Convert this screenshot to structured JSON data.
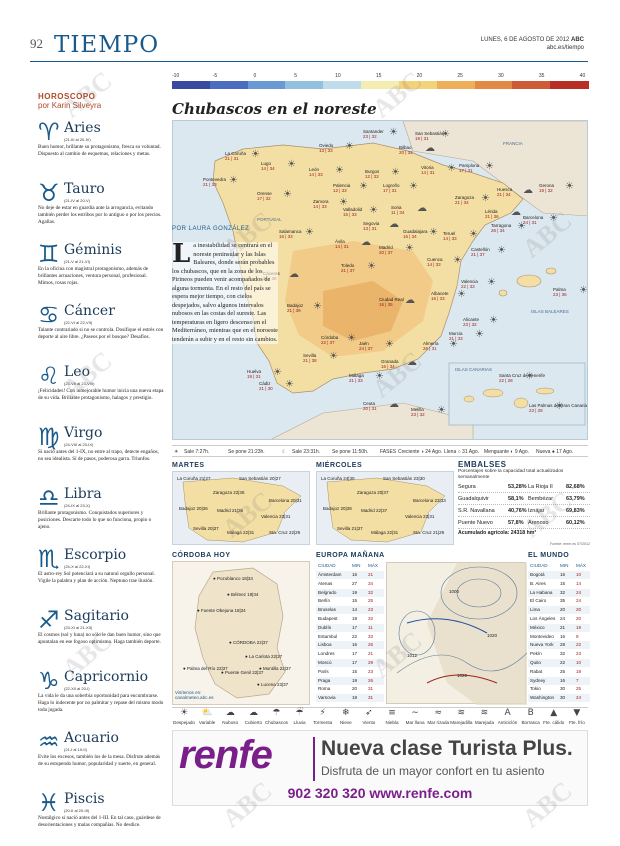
{
  "header": {
    "page_number": "92",
    "section": "TIEMPO",
    "date": "LUNES, 6 DE AGOSTO DE 2012",
    "paper": "ABC",
    "web": "abc.es/tiempo"
  },
  "watermark": "ABC",
  "horoscope": {
    "title": "HOROSCOPO",
    "byline": "por Karin Silveyra",
    "signs": [
      {
        "symbol": "♈",
        "name": "Aries",
        "dates": "(21-III al 20-IV)",
        "text": "Buen humor, brillante su protagonismo, fresca su voluntad. Dispuesto al cambio de esquemas, relaciones y metas."
      },
      {
        "symbol": "♉",
        "name": "Tauro",
        "dates": "(21-IV al 20-V)",
        "text": "No deje de estar en guardia ante la arrogancia, evitando también perder los estribos por lo antiguo o por los precios. Agallas."
      },
      {
        "symbol": "♊",
        "name": "Géminis",
        "dates": "(21-V al 21-VI)",
        "text": "En la oficina con magistral protagonismo, además de brillantes actuaciones, ventura personal, profesional. Mimos, rosas rojas."
      },
      {
        "symbol": "♋",
        "name": "Cáncer",
        "dates": "(22-VI al 22-VII)",
        "text": "Talante contrariado si no se controla. Dosifique el estrés con deporte al aire libre. ¿Paseos por el bosque? Desafíos."
      },
      {
        "symbol": "♌",
        "name": "Leo",
        "dates": "(23-VII al 23-VIII)",
        "text": "¡Felicidades! Con inmejorable humor inicia una nueva etapa de su vida. Brillante protagonismo, halagos y prestigio."
      },
      {
        "symbol": "♍",
        "name": "Virgo",
        "dates": "(24-VIII al 23-IX)",
        "text": "Si nació antes del 1-IX, no entre al trapo, detecte engaños, no sea idealista. Sí de pasos, poderosa garra. Triunfos."
      },
      {
        "symbol": "♎",
        "name": "Libra",
        "dates": "(24-IX al 23-X)",
        "text": "Brillante protagonismo. Conquistados superiores y posiciones. Descarte todo lo que no funciona, propio o ajeno."
      },
      {
        "symbol": "♏",
        "name": "Escorpio",
        "dates": "(24-X al 22-XI)",
        "text": "El astro-rey Sol potenciará a su natural orgullo personal. Vigile la palabra y plan de acción. Neptuno trae ilusión."
      },
      {
        "symbol": "♐",
        "name": "Sagitario",
        "dates": "(23-XI al 21-XII)",
        "text": "El cosmos (sol y luna) no sólo le dan buen humor, sino que apuntalan en ese fogoso optimismo. Haga también deporte."
      },
      {
        "symbol": "♑",
        "name": "Capricornio",
        "dates": "(22-XII al 20-I)",
        "text": "La vida le da una soberbia oportunidad para encumbrarse. Haga lo indecente por no palmitar y repase del mismo modo toda jugada."
      },
      {
        "symbol": "♒",
        "name": "Acuario",
        "dates": "(21-I al 19-II)",
        "text": "Evite los excesos, también los de la mesa. Disfrute además de su estupendo humor, popularidad y suerte, en general."
      },
      {
        "symbol": "♓",
        "name": "Piscis",
        "dates": "(20-II al 20-III)",
        "text": "Nostálgico si nació antes del 1-III. En tal caso, guárdese de desorientaciones y malas compañías. No desdice."
      }
    ]
  },
  "scale": [
    "-10",
    "-5",
    "0",
    "5",
    "10",
    "15",
    "20",
    "25",
    "30",
    "35",
    "40"
  ],
  "map": {
    "title": "Chubascos en el noreste",
    "byline": "POR LAURA GONZÁLEZ",
    "drop_letter": "L",
    "body": "a inestabilidad se centrará en el noreste peninsular y las Islas Baleares, donde serán probables los chubascos, que en la zona de los Pirineos pueden venir acompañados de alguna tormenta. En el resto del país se espera mejor tiempo, con cielos despejados, salvo algunos intervalos nubosos en las costas del sureste. Las temperaturas en ligero descenso en el Mediterráneo, mientras que en el noroeste tenderán a subir y en el resto sin cambios.",
    "country_labels": [
      "FRANCIA",
      "PORTUGAL",
      "ISLAS BALEARES",
      "ISLAS CANARIAS"
    ],
    "cities": [
      {
        "name": "Santander",
        "temps": "23 | 32"
      },
      {
        "name": "San Sebastián",
        "temps": "19 | 31"
      },
      {
        "name": "Oviedo",
        "temps": "13 | 33"
      },
      {
        "name": "Bilbao",
        "temps": "20 | 33"
      },
      {
        "name": "La Coruña",
        "temps": "21 | 31"
      },
      {
        "name": "Lugo",
        "temps": "14 | 34"
      },
      {
        "name": "Vitoria",
        "temps": "14 | 31"
      },
      {
        "name": "Pamplona",
        "temps": "17 | 31"
      },
      {
        "name": "Huesca",
        "temps": "21 | 34"
      },
      {
        "name": "Gerona",
        "temps": "19 | 32"
      },
      {
        "name": "León",
        "temps": "14 | 33"
      },
      {
        "name": "Burgos",
        "temps": "12 | 33"
      },
      {
        "name": "Logroño",
        "temps": "17 | 31"
      },
      {
        "name": "Lérida",
        "temps": "21 | 36"
      },
      {
        "name": "Barcelona",
        "temps": "24 | 31"
      },
      {
        "name": "Pontevedra",
        "temps": "21 | 33"
      },
      {
        "name": "Orense",
        "temps": "17 | 32"
      },
      {
        "name": "Palencia",
        "temps": "12 | 33"
      },
      {
        "name": "Soria",
        "temps": "11 | 34"
      },
      {
        "name": "Zaragoza",
        "temps": "21 | 34"
      },
      {
        "name": "Tarragona",
        "temps": "26 | 34"
      },
      {
        "name": "Zamora",
        "temps": "14 | 33"
      },
      {
        "name": "Valladolid",
        "temps": "15 | 33"
      },
      {
        "name": "Segovia",
        "temps": "13 | 31"
      },
      {
        "name": "Guadalajara",
        "temps": "16 | 34"
      },
      {
        "name": "Teruel",
        "temps": "14 | 33"
      },
      {
        "name": "Castellón",
        "temps": "21 | 37"
      },
      {
        "name": "Salamanca",
        "temps": "16 | 33"
      },
      {
        "name": "Ávila",
        "temps": "14 | 31"
      },
      {
        "name": "Madrid",
        "temps": "20 | 37"
      },
      {
        "name": "Cuenca",
        "temps": "14 | 33"
      },
      {
        "name": "Valencia",
        "temps": "22 | 33"
      },
      {
        "name": "Palma",
        "temps": "23 | 36"
      },
      {
        "name": "Cáceres",
        "temps": "21 | 36"
      },
      {
        "name": "Toledo",
        "temps": "21 | 37"
      },
      {
        "name": "Albacete",
        "temps": "16 | 33"
      },
      {
        "name": "Alicante",
        "temps": "23 | 32"
      },
      {
        "name": "Badajoz",
        "temps": "21 | 39"
      },
      {
        "name": "Ciudad Real",
        "temps": "16 | 35"
      },
      {
        "name": "Murcia",
        "temps": "21 | 33"
      },
      {
        "name": "Córdoba",
        "temps": "22 | 37"
      },
      {
        "name": "Jaén",
        "temps": "24 | 37"
      },
      {
        "name": "Sevilla",
        "temps": "21 | 38"
      },
      {
        "name": "Granada",
        "temps": "16 | 34"
      },
      {
        "name": "Almería",
        "temps": "26 | 31"
      },
      {
        "name": "Huelva",
        "temps": "19 | 31"
      },
      {
        "name": "Málaga",
        "temps": "21 | 33"
      },
      {
        "name": "Cádiz",
        "temps": "21 | 30"
      },
      {
        "name": "Ceuta",
        "temps": "20 | 31"
      },
      {
        "name": "Melilla",
        "temps": "23 | 32"
      },
      {
        "name": "Santa Cruz de Tenerife",
        "temps": "22 | 28"
      },
      {
        "name": "Las Palmas de Gran Canaria",
        "temps": "23 | 28"
      }
    ]
  },
  "sun_moon": {
    "sale": "Sale 7:27h.",
    "se_pone": "Se pone 21:23h.",
    "luna_sale": "Sale 23:31h.",
    "luna_pone": "Se pone 11:50h.",
    "fases": "FASES",
    "creciente": "Creciente ◑ 24 Ago.",
    "llena": "Llena ○ 31 Ago.",
    "menguante": "Menguante ◐ 9 Ago.",
    "nueva": "Nueva ● 17 Ago."
  },
  "martes": {
    "title": "MARTES",
    "cities": [
      "La Coruña 21|27",
      "San Sebastián 20|27",
      "Zaragoza 22|36",
      "Barcelona 20|31",
      "Badajoz 20|36",
      "Madrid 21|36",
      "Valencia 23|31",
      "Sevilla 20|37",
      "Málaga 22|31",
      "Sta. Cruz 22|29"
    ]
  },
  "miercoles": {
    "title": "MIÉRCOLES",
    "cities": [
      "La Coruña 24|30",
      "San Sebastián 23|30",
      "Zaragoza 20|37",
      "Barcelona 23|33",
      "Badajoz 20|38",
      "Madrid 22|37",
      "Valencia 23|31",
      "Sevilla 21|37",
      "Málaga 22|31",
      "Sta. Cruz 21|29"
    ]
  },
  "embalses": {
    "title": "EMBALSES",
    "subtitle": "Porcentajes sobre la capacidad total actualizados semanalmente",
    "rows": [
      {
        "name": "Segura",
        "value": "53,28%"
      },
      {
        "name": "La Rioja II",
        "value": "82,68%"
      },
      {
        "name": "Guadalquivir",
        "value": "58,1%"
      },
      {
        "name": "Bembézar",
        "value": "63,79%"
      },
      {
        "name": "S.R. Navallana",
        "value": "40,76%"
      },
      {
        "name": "Iznájar",
        "value": "69,83%"
      },
      {
        "name": "Puente Nuevo",
        "value": "57,8%"
      },
      {
        "name": "Arenoso",
        "value": "60,12%"
      }
    ],
    "total": "Acumulado agrícola: 24318 hm³",
    "source": "Fuente: emm.es 07/2012"
  },
  "cordoba": {
    "title": "CÓRDOBA HOY",
    "towns": [
      "Pozoblanco 18|34",
      "Bélmez 19|34",
      "Fuente Obejuna 18|34",
      "CÓRDOBA 22|37",
      "La Carlota 22|37",
      "Palma del Río 22|37",
      "Puente Genil 22|37",
      "Montilla 22|37",
      "Lucena 23|37"
    ],
    "footer": "Visítenos en: canalmeteo.abc.es"
  },
  "europa": {
    "title": "EUROPA MAÑANA",
    "headers": [
      "CIUDAD",
      "MIN",
      "MÁX"
    ],
    "rows": [
      [
        "Ámsterdam",
        "15",
        "21"
      ],
      [
        "Atenas",
        "27",
        "34"
      ],
      [
        "Belgrado",
        "19",
        "32"
      ],
      [
        "Berlín",
        "15",
        "25"
      ],
      [
        "Bruselas",
        "14",
        "23"
      ],
      [
        "Budapest",
        "19",
        "32"
      ],
      [
        "Dublín",
        "17",
        "11"
      ],
      [
        "Estambul",
        "22",
        "33"
      ],
      [
        "Lisboa",
        "16",
        "26"
      ],
      [
        "Londres",
        "17",
        "21"
      ],
      [
        "Moscú",
        "17",
        "29"
      ],
      [
        "París",
        "15",
        "23"
      ],
      [
        "Praga",
        "19",
        "26"
      ],
      [
        "Roma",
        "20",
        "31"
      ],
      [
        "Varsovia",
        "18",
        "31"
      ]
    ],
    "pressure_labels": [
      "1000",
      "1012",
      "1020",
      "1020"
    ]
  },
  "mundo": {
    "title": "EL MUNDO",
    "headers": [
      "CIUDAD",
      "MIN",
      "MÁX"
    ],
    "rows": [
      [
        "Bogotá",
        "15",
        "10"
      ],
      [
        "B. Aires",
        "15",
        "14"
      ],
      [
        "La Habana",
        "32",
        "24"
      ],
      [
        "El Cairo",
        "35",
        "24"
      ],
      [
        "Lima",
        "20",
        "20"
      ],
      [
        "Los Ángeles",
        "24",
        "20"
      ],
      [
        "México",
        "21",
        "19"
      ],
      [
        "Montevideo",
        "16",
        "9"
      ],
      [
        "Nueva York",
        "28",
        "22"
      ],
      [
        "Pekín",
        "32",
        "23"
      ],
      [
        "Quito",
        "22",
        "10"
      ],
      [
        "Rabat",
        "25",
        "18"
      ],
      [
        "Sydney",
        "16",
        "7"
      ],
      [
        "Tokio",
        "30",
        "25"
      ],
      [
        "Washington",
        "30",
        "24"
      ]
    ]
  },
  "legend": [
    "Despejado",
    "Variable",
    "Nuboso",
    "Cubierto",
    "Chubascos",
    "Lluvia",
    "Tormenta",
    "Nieve",
    "Viento",
    "Niebla",
    "Mar llana",
    "Mar rizada",
    "Marejadilla",
    "Marejada",
    "Anticiclón",
    "Borrasca",
    "Fte. cálido",
    "Fte. frío"
  ],
  "ad": {
    "brand": "renfe",
    "headline": "Nueva clase Turista Plus.",
    "subline": "Disfruta de un mayor confort en tu asiento",
    "phone": "902 320 320 www.renfe.com",
    "brand_color": "#7a1f8a"
  }
}
